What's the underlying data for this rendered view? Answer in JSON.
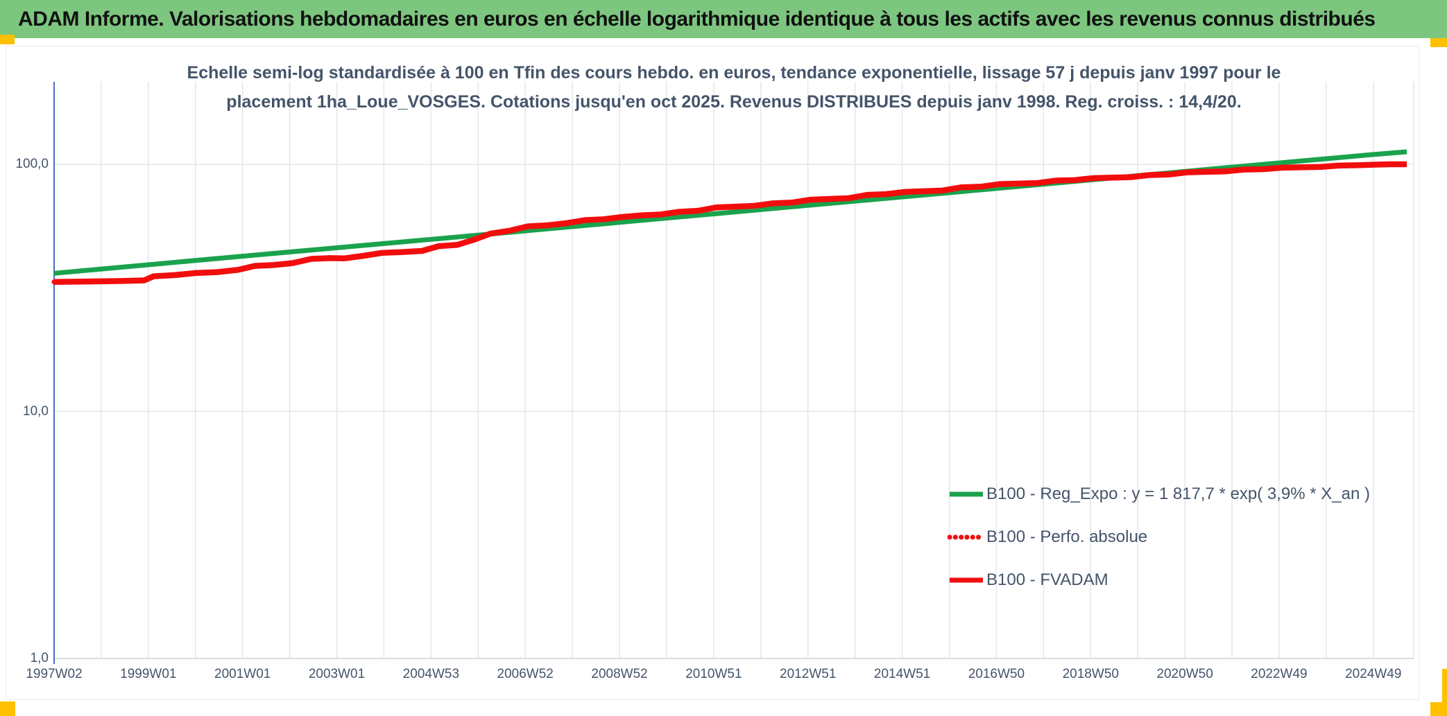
{
  "header": {
    "title": "ADAM Informe. Valorisations hebdomadaires en euros en échelle logarithmique identique à tous les actifs avec les revenus connus distribués"
  },
  "accent_colors": {
    "header_green": "#7dc67f",
    "corner_yellow": "#ffc000"
  },
  "chart": {
    "title_line1": "Echelle semi-log standardisée à 100 en Tfin des cours hebdo. en euros, tendance exponentielle, lissage 57 j depuis janv 1997 pour le",
    "title_line2": "placement 1ha_Loue_VOSGES. Cotations jusqu'en oct 2025. Revenus DISTRIBUES depuis janv 1998. Reg. croiss. : 14,4/20."
  },
  "chart_data": {
    "type": "line",
    "y_scale": "log10",
    "ylim": [
      1,
      215
    ],
    "y_tick_labels": [
      "100,0",
      "10,0",
      "1,0"
    ],
    "y_tick_values": [
      100,
      10,
      1
    ],
    "x_tick_labels": [
      "1997W02",
      "1999W01",
      "2001W01",
      "2003W01",
      "2004W53",
      "2006W52",
      "2008W52",
      "2010W51",
      "2012W51",
      "2014W51",
      "2016W50",
      "2018W50",
      "2020W50",
      "2022W49",
      "2024W49"
    ],
    "x_tick_interval_years": 2,
    "x_range_years": [
      1997.04,
      2025.75
    ],
    "x_gridline_interval_years": 1,
    "grid": true,
    "colors": {
      "gridline": "#e2e5ea",
      "axis_left_blue": "#4472c4",
      "axis_bottom_gray": "#ccd1d9",
      "text": "#44546a",
      "series_green": "#1aa24c",
      "series_red": "#f20d0d"
    },
    "legend_position": "inside-bottom-right",
    "legend": [
      {
        "label": "B100 - Reg_Expo : y = 1 817,7 * exp( 3,9% *  X_an )",
        "color": "#1aa24c",
        "style": "solid"
      },
      {
        "label": "B100 - Perfo. absolue",
        "color": "#f20d0d",
        "style": "dotted"
      },
      {
        "label": "B100 - FVADAM",
        "color": "#f20d0d",
        "style": "solid"
      }
    ],
    "series": [
      {
        "name": "B100 - Reg_Expo",
        "color": "#1aa24c",
        "style": "solid",
        "formula": "y = 1 817,7 * exp( 3,9% * X_an )",
        "points": [
          [
            1997.04,
            36.2
          ],
          [
            2001.0,
            42.4
          ],
          [
            2005.0,
            49.6
          ],
          [
            2009.0,
            58.1
          ],
          [
            2013.0,
            68.1
          ],
          [
            2017.0,
            79.7
          ],
          [
            2021.0,
            93.4
          ],
          [
            2025.0,
            109.4
          ],
          [
            2025.75,
            112.3
          ]
        ]
      },
      {
        "name": "B100 - Perfo. absolue",
        "color": "#f20d0d",
        "style": "dotted",
        "same_points_as": "B100 - FVADAM"
      },
      {
        "name": "B100 - FVADAM",
        "color": "#f20d0d",
        "style": "solid",
        "points": [
          [
            1997.04,
            33.4
          ],
          [
            1997.5,
            33.5
          ],
          [
            1998.0,
            33.6
          ],
          [
            1998.5,
            33.7
          ],
          [
            1998.95,
            33.9
          ],
          [
            1999.15,
            35.2
          ],
          [
            1999.6,
            35.6
          ],
          [
            2000.05,
            36.3
          ],
          [
            2000.5,
            36.6
          ],
          [
            2000.95,
            37.4
          ],
          [
            2001.3,
            38.8
          ],
          [
            2001.7,
            39.1
          ],
          [
            2002.1,
            39.8
          ],
          [
            2002.5,
            41.4
          ],
          [
            2002.9,
            41.7
          ],
          [
            2003.2,
            41.6
          ],
          [
            2003.6,
            42.6
          ],
          [
            2004.0,
            43.8
          ],
          [
            2004.4,
            44.1
          ],
          [
            2004.85,
            44.6
          ],
          [
            2005.2,
            46.6
          ],
          [
            2005.6,
            47.2
          ],
          [
            2005.95,
            49.5
          ],
          [
            2006.3,
            52.4
          ],
          [
            2006.7,
            53.8
          ],
          [
            2007.1,
            56.1
          ],
          [
            2007.5,
            56.6
          ],
          [
            2007.9,
            57.7
          ],
          [
            2008.3,
            59.4
          ],
          [
            2008.7,
            59.9
          ],
          [
            2009.1,
            61.2
          ],
          [
            2009.5,
            62.1
          ],
          [
            2009.9,
            62.6
          ],
          [
            2010.3,
            64.2
          ],
          [
            2010.7,
            64.8
          ],
          [
            2011.1,
            66.9
          ],
          [
            2011.5,
            67.4
          ],
          [
            2011.9,
            67.9
          ],
          [
            2012.3,
            69.5
          ],
          [
            2012.7,
            70.0
          ],
          [
            2013.1,
            71.9
          ],
          [
            2013.5,
            72.4
          ],
          [
            2013.9,
            72.9
          ],
          [
            2014.3,
            75.2
          ],
          [
            2014.7,
            75.7
          ],
          [
            2015.1,
            77.3
          ],
          [
            2015.5,
            77.8
          ],
          [
            2015.9,
            78.3
          ],
          [
            2016.3,
            80.7
          ],
          [
            2016.7,
            81.1
          ],
          [
            2017.1,
            83.1
          ],
          [
            2017.5,
            83.5
          ],
          [
            2017.9,
            83.9
          ],
          [
            2018.3,
            85.9
          ],
          [
            2018.7,
            86.3
          ],
          [
            2019.1,
            87.9
          ],
          [
            2019.5,
            88.3
          ],
          [
            2019.9,
            88.7
          ],
          [
            2020.3,
            90.5
          ],
          [
            2020.7,
            90.9
          ],
          [
            2021.1,
            92.8
          ],
          [
            2021.5,
            93.2
          ],
          [
            2021.9,
            93.6
          ],
          [
            2022.3,
            95.2
          ],
          [
            2022.7,
            95.5
          ],
          [
            2023.1,
            96.9
          ],
          [
            2023.5,
            97.2
          ],
          [
            2023.9,
            97.5
          ],
          [
            2024.3,
            98.8
          ],
          [
            2024.7,
            99.1
          ],
          [
            2025.1,
            99.7
          ],
          [
            2025.4,
            100.0
          ],
          [
            2025.75,
            100.0
          ]
        ]
      }
    ]
  }
}
